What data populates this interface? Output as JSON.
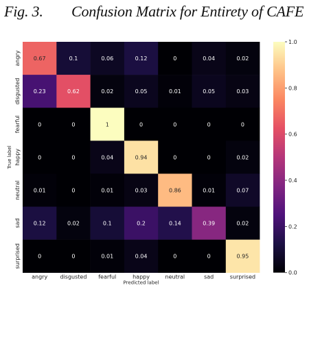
{
  "caption": {
    "number": "Fig. 3.",
    "title": "Confusion Matrix for Entirety of CAFE"
  },
  "chart_data": {
    "type": "heatmap",
    "title": "Confusion Matrix for Entirety of CAFE",
    "xlabel": "Predicted label",
    "ylabel": "True label",
    "x_categories": [
      "angry",
      "disgusted",
      "fearful",
      "happy",
      "neutral",
      "sad",
      "surprised"
    ],
    "y_categories": [
      "angry",
      "disgusted",
      "fearful",
      "happy",
      "neutral",
      "sad",
      "surprised"
    ],
    "values": [
      [
        0.67,
        0.1,
        0.06,
        0.12,
        0,
        0.04,
        0.02
      ],
      [
        0.23,
        0.62,
        0.02,
        0.05,
        0.01,
        0.05,
        0.03
      ],
      [
        0,
        0,
        1,
        0,
        0,
        0,
        0
      ],
      [
        0,
        0,
        0.04,
        0.94,
        0,
        0,
        0.02
      ],
      [
        0.01,
        0,
        0.01,
        0.03,
        0.86,
        0.01,
        0.07
      ],
      [
        0.12,
        0.02,
        0.1,
        0.2,
        0.14,
        0.39,
        0.02
      ],
      [
        0,
        0,
        0.01,
        0.04,
        0,
        0,
        0.95
      ]
    ],
    "value_labels": [
      [
        "0.67",
        "0.1",
        "0.06",
        "0.12",
        "0",
        "0.04",
        "0.02"
      ],
      [
        "0.23",
        "0.62",
        "0.02",
        "0.05",
        "0.01",
        "0.05",
        "0.03"
      ],
      [
        "0",
        "0",
        "1",
        "0",
        "0",
        "0",
        "0"
      ],
      [
        "0",
        "0",
        "0.04",
        "0.94",
        "0",
        "0",
        "0.02"
      ],
      [
        "0.01",
        "0",
        "0.01",
        "0.03",
        "0.86",
        "0.01",
        "0.07"
      ],
      [
        "0.12",
        "0.02",
        "0.1",
        "0.2",
        "0.14",
        "0.39",
        "0.02"
      ],
      [
        "0",
        "0",
        "0.01",
        "0.04",
        "0",
        "0",
        "0.95"
      ]
    ],
    "colorbar": {
      "min": 0,
      "max": 1,
      "ticks": [
        0.0,
        0.2,
        0.4,
        0.6,
        0.8,
        1.0
      ],
      "tick_labels": [
        "0.0",
        "0.2",
        "0.4",
        "0.6",
        "0.8",
        "1.0"
      ]
    },
    "colormap": "magma",
    "colormap_stops": [
      "#000004",
      "#1c1044",
      "#4f127b",
      "#812581",
      "#b5367a",
      "#e55064",
      "#fb8761",
      "#fec287",
      "#fcfdbf"
    ]
  }
}
